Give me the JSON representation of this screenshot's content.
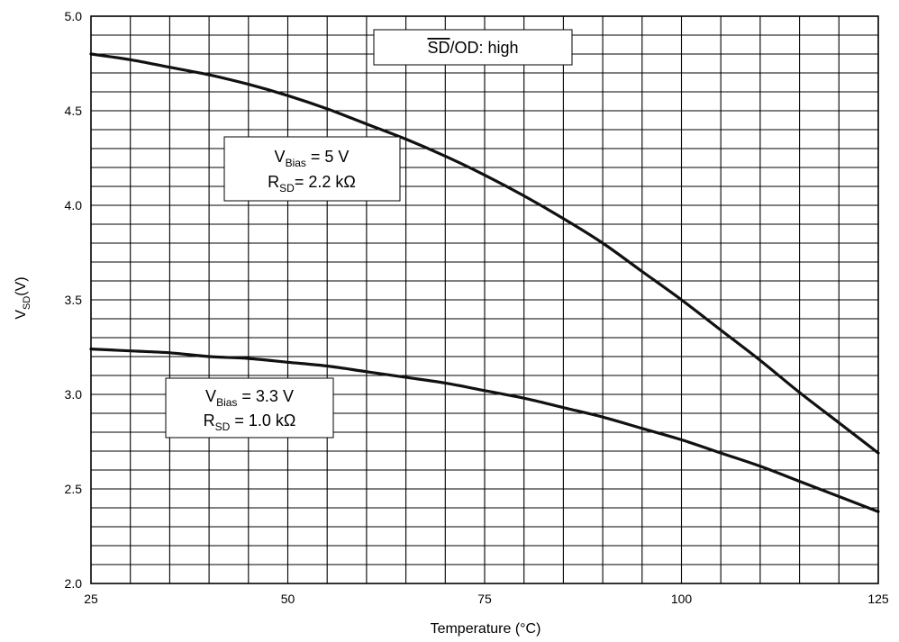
{
  "chart_data": {
    "type": "line",
    "title": "",
    "xlabel": "Temperature (°C)",
    "ylabel": {
      "main": "V",
      "sub": "SD",
      "suffix": "(V)"
    },
    "xlim": [
      25,
      125
    ],
    "ylim": [
      2.0,
      5.0
    ],
    "x_ticks": [
      25,
      50,
      75,
      100,
      125
    ],
    "y_ticks": [
      2.0,
      2.5,
      3.0,
      3.5,
      4.0,
      4.5,
      5.0
    ],
    "x_ticks_display": [
      "25",
      "50",
      "75",
      "100",
      "125"
    ],
    "y_ticks_display": [
      "2.0",
      "2.5",
      "3.0",
      "3.5",
      "4.0",
      "4.5",
      "5.0"
    ],
    "grid": true,
    "x_minor_step": 5,
    "y_minor_step": 0.1,
    "line_color": "#111111",
    "series": [
      {
        "x": [
          25,
          30,
          35,
          40,
          45,
          50,
          55,
          60,
          65,
          70,
          75,
          80,
          85,
          90,
          95,
          100,
          105,
          110,
          115,
          120,
          125
        ],
        "y": [
          4.8,
          4.77,
          4.73,
          4.69,
          4.64,
          4.58,
          4.51,
          4.43,
          4.35,
          4.26,
          4.16,
          4.05,
          3.93,
          3.8,
          3.65,
          3.5,
          3.34,
          3.18,
          3.01,
          2.85,
          2.69
        ]
      },
      {
        "x": [
          25,
          30,
          35,
          40,
          45,
          50,
          55,
          60,
          65,
          70,
          75,
          80,
          85,
          90,
          95,
          100,
          105,
          110,
          115,
          120,
          125
        ],
        "y": [
          3.24,
          3.23,
          3.22,
          3.2,
          3.19,
          3.17,
          3.15,
          3.12,
          3.09,
          3.06,
          3.02,
          2.98,
          2.93,
          2.88,
          2.82,
          2.76,
          2.69,
          2.62,
          2.54,
          2.46,
          2.38
        ]
      }
    ],
    "annotations": [
      {
        "lines": [
          {
            "pre": "",
            "overline": "SD",
            "post": "/OD: high"
          }
        ]
      },
      {
        "lines": [
          {
            "main": "V",
            "sub": "Bias",
            "post": " = 5 V"
          },
          {
            "main": "R",
            "sub": "SD",
            "post": "= 2.2 kΩ"
          }
        ]
      },
      {
        "lines": [
          {
            "main": "V",
            "sub": "Bias",
            "post": " = 3.3 V"
          },
          {
            "main": "R",
            "sub": "SD",
            "post": " = 1.0 kΩ"
          }
        ]
      }
    ]
  }
}
